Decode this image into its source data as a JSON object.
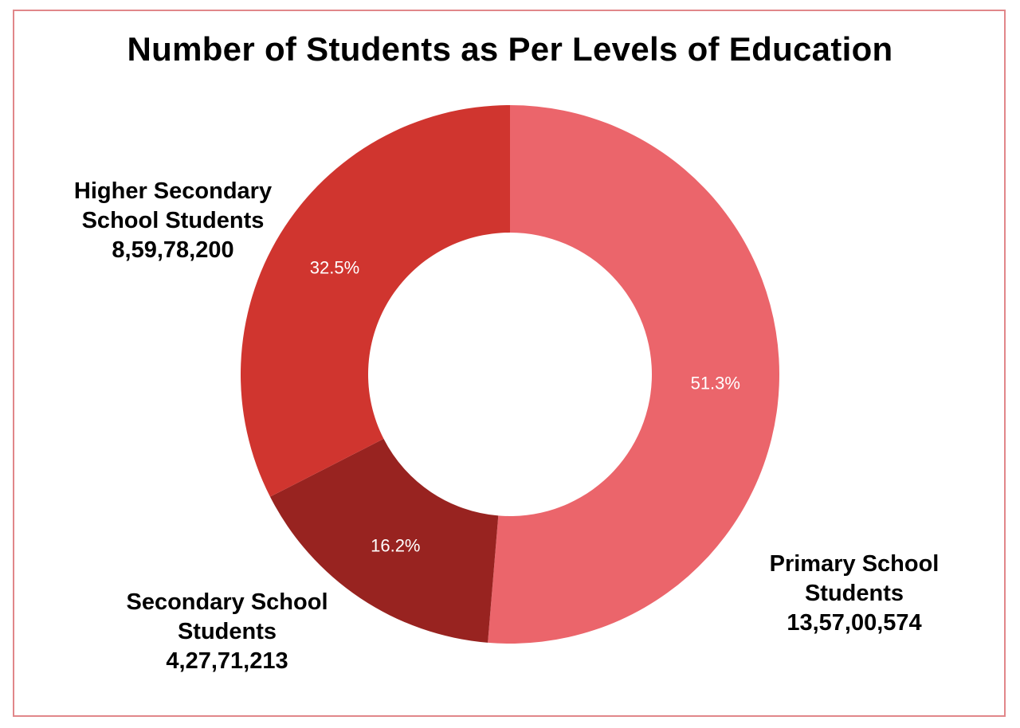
{
  "chart_data": {
    "type": "pie",
    "title": "Number of Students as Per Levels of Education",
    "donut": true,
    "slices": [
      {
        "name": "Primary School Students",
        "value_label": "13,57,00,574",
        "value": 135700574,
        "percent_label": "51.3%",
        "color": "#eb656b"
      },
      {
        "name": "Secondary School Students",
        "value_label": "4,27,71,213",
        "value": 42771213,
        "percent_label": "16.2%",
        "color": "#982320"
      },
      {
        "name": "Higher Secondary School Students",
        "value_label": "8,59,78,200",
        "value": 85978200,
        "percent_label": "32.5%",
        "color": "#d0352f"
      }
    ]
  },
  "frame_color": "#e1878a"
}
